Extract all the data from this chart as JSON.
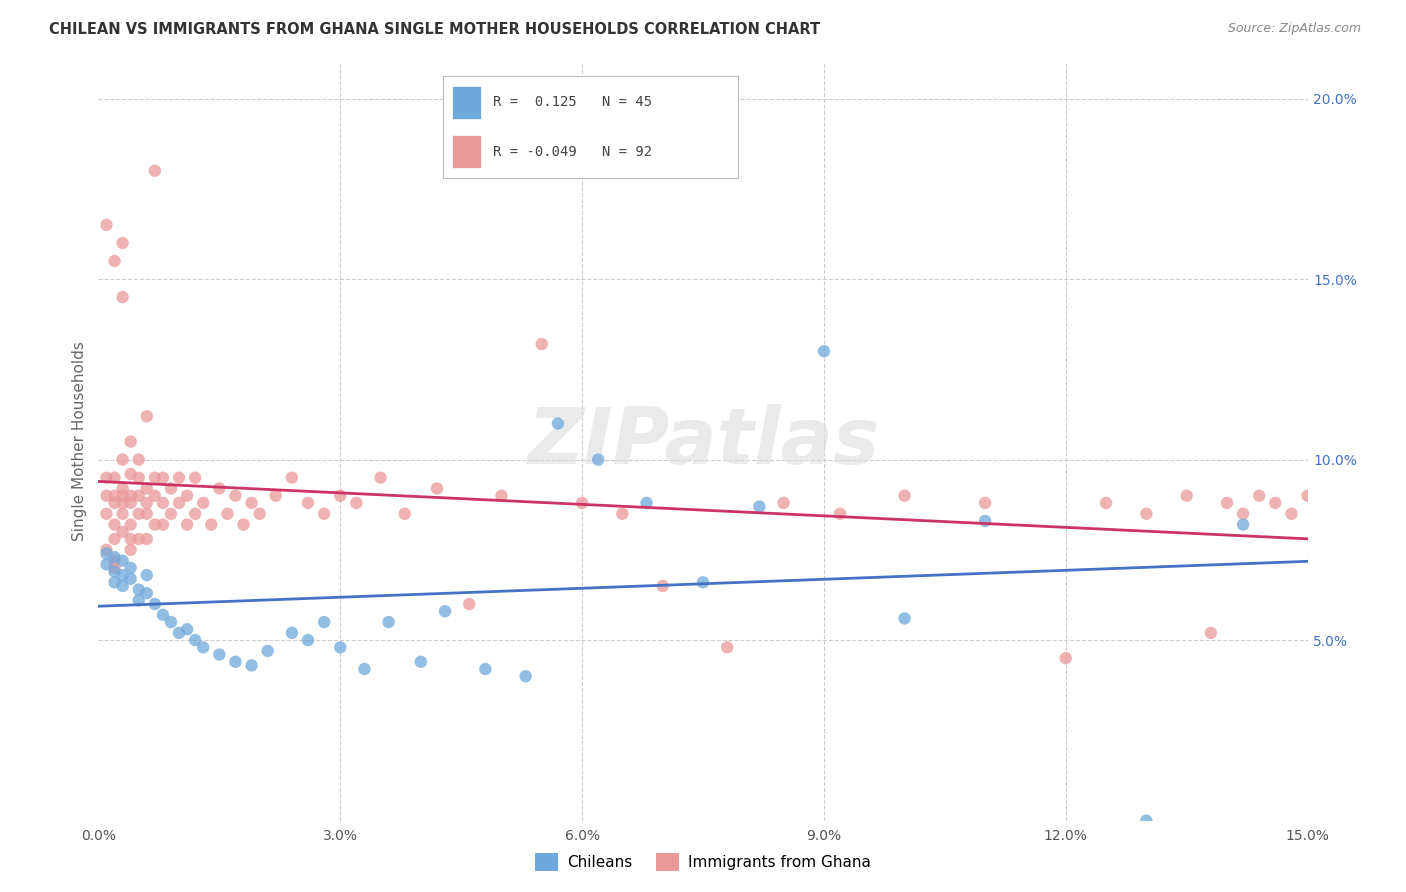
{
  "title": "CHILEAN VS IMMIGRANTS FROM GHANA SINGLE MOTHER HOUSEHOLDS CORRELATION CHART",
  "source": "Source: ZipAtlas.com",
  "ylabel": "Single Mother Households",
  "xlabel": "",
  "xlim": [
    0.0,
    0.15
  ],
  "ylim": [
    0.0,
    0.21
  ],
  "xtick_vals": [
    0.0,
    0.03,
    0.06,
    0.09,
    0.12,
    0.15
  ],
  "ytick_vals": [
    0.05,
    0.1,
    0.15,
    0.2
  ],
  "ytick_labels": [
    "5.0%",
    "10.0%",
    "15.0%",
    "20.0%"
  ],
  "xtick_labels": [
    "0.0%",
    "3.0%",
    "6.0%",
    "9.0%",
    "12.0%",
    "15.0%"
  ],
  "color_chilean": "#6fa8dc",
  "color_ghana": "#ea9999",
  "color_chilean_line": "#4472c4",
  "color_ghana_line": "#cc3366",
  "watermark": "ZIPatlas",
  "chilean_x": [
    0.001,
    0.001,
    0.002,
    0.002,
    0.002,
    0.003,
    0.003,
    0.003,
    0.004,
    0.004,
    0.005,
    0.005,
    0.006,
    0.006,
    0.007,
    0.008,
    0.009,
    0.01,
    0.011,
    0.012,
    0.013,
    0.015,
    0.017,
    0.019,
    0.021,
    0.024,
    0.026,
    0.028,
    0.03,
    0.033,
    0.036,
    0.04,
    0.043,
    0.048,
    0.053,
    0.057,
    0.062,
    0.068,
    0.075,
    0.082,
    0.09,
    0.1,
    0.11,
    0.13,
    0.142
  ],
  "chilean_y": [
    0.074,
    0.071,
    0.073,
    0.069,
    0.066,
    0.072,
    0.068,
    0.065,
    0.07,
    0.067,
    0.064,
    0.061,
    0.068,
    0.063,
    0.06,
    0.057,
    0.055,
    0.052,
    0.053,
    0.05,
    0.048,
    0.046,
    0.044,
    0.043,
    0.047,
    0.052,
    0.05,
    0.055,
    0.048,
    0.042,
    0.055,
    0.044,
    0.058,
    0.042,
    0.04,
    0.11,
    0.1,
    0.088,
    0.066,
    0.087,
    0.13,
    0.056,
    0.083,
    0.0,
    0.082
  ],
  "ghana_x": [
    0.001,
    0.001,
    0.001,
    0.001,
    0.001,
    0.002,
    0.002,
    0.002,
    0.002,
    0.002,
    0.002,
    0.002,
    0.002,
    0.003,
    0.003,
    0.003,
    0.003,
    0.003,
    0.003,
    0.003,
    0.003,
    0.004,
    0.004,
    0.004,
    0.004,
    0.004,
    0.004,
    0.004,
    0.005,
    0.005,
    0.005,
    0.005,
    0.005,
    0.006,
    0.006,
    0.006,
    0.006,
    0.006,
    0.007,
    0.007,
    0.007,
    0.007,
    0.008,
    0.008,
    0.008,
    0.009,
    0.009,
    0.01,
    0.01,
    0.011,
    0.011,
    0.012,
    0.012,
    0.013,
    0.014,
    0.015,
    0.016,
    0.017,
    0.018,
    0.019,
    0.02,
    0.022,
    0.024,
    0.026,
    0.028,
    0.03,
    0.032,
    0.035,
    0.038,
    0.042,
    0.046,
    0.05,
    0.055,
    0.06,
    0.065,
    0.07,
    0.078,
    0.085,
    0.092,
    0.1,
    0.11,
    0.12,
    0.125,
    0.13,
    0.135,
    0.138,
    0.14,
    0.142,
    0.144,
    0.146,
    0.148,
    0.15
  ],
  "ghana_y": [
    0.09,
    0.095,
    0.085,
    0.075,
    0.165,
    0.09,
    0.095,
    0.082,
    0.088,
    0.078,
    0.072,
    0.155,
    0.07,
    0.09,
    0.085,
    0.145,
    0.092,
    0.08,
    0.088,
    0.1,
    0.16,
    0.09,
    0.082,
    0.096,
    0.075,
    0.088,
    0.105,
    0.078,
    0.085,
    0.095,
    0.078,
    0.09,
    0.1,
    0.085,
    0.092,
    0.078,
    0.088,
    0.112,
    0.082,
    0.09,
    0.095,
    0.18,
    0.088,
    0.082,
    0.095,
    0.085,
    0.092,
    0.088,
    0.095,
    0.082,
    0.09,
    0.085,
    0.095,
    0.088,
    0.082,
    0.092,
    0.085,
    0.09,
    0.082,
    0.088,
    0.085,
    0.09,
    0.095,
    0.088,
    0.085,
    0.09,
    0.088,
    0.095,
    0.085,
    0.092,
    0.06,
    0.09,
    0.132,
    0.088,
    0.085,
    0.065,
    0.048,
    0.088,
    0.085,
    0.09,
    0.088,
    0.045,
    0.088,
    0.085,
    0.09,
    0.052,
    0.088,
    0.085,
    0.09,
    0.088,
    0.085,
    0.09
  ]
}
